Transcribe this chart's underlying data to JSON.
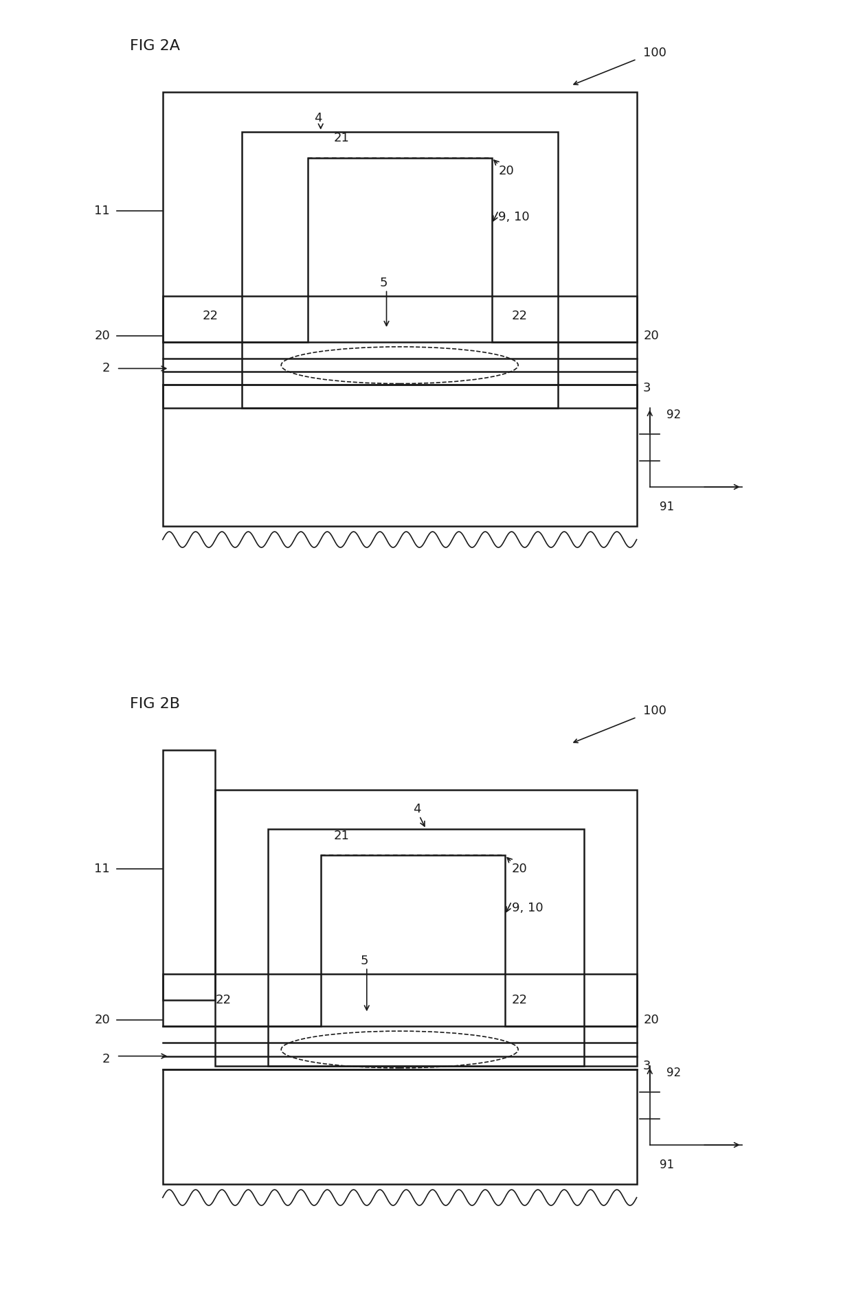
{
  "fig_title_a": "FIG 2A",
  "fig_title_b": "FIG 2B",
  "bg_color": "#ffffff",
  "line_color": "#1a1a1a",
  "lw": 1.8,
  "tlw": 1.2,
  "fs": 13,
  "title_fs": 16
}
